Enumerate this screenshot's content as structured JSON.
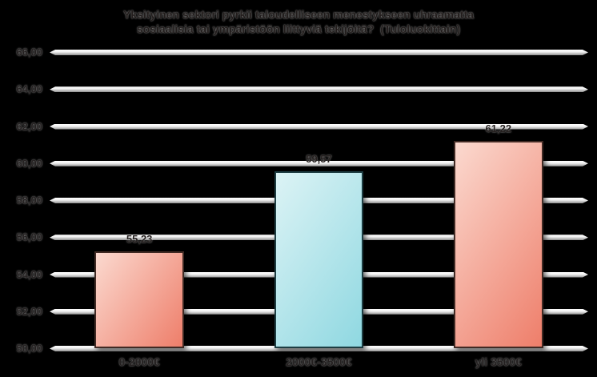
{
  "chart_data": {
    "type": "bar",
    "title": "Yksityinen sektori pyrkii taloudelliseen menestykseen uhraamatta\nsosiaalisia tai ympäristöön liittyviä tekijöitä?  (Tuloluokittain)",
    "xlabel": "",
    "ylabel": "",
    "ylim": [
      50,
      66
    ],
    "ytick_step": 2,
    "ytick_labels": [
      "66,00",
      "64,00",
      "62,00",
      "60,00",
      "58,00",
      "56,00",
      "54,00",
      "52,00",
      "50,00"
    ],
    "grid": true,
    "legend": false,
    "categories": [
      "0-2000€",
      "2000€-3500€",
      "yli 3500€"
    ],
    "values": [
      55.23,
      59.57,
      61.22
    ],
    "bars": [
      {
        "category": "0-2000€",
        "value": 55.23,
        "value_label": "55,23",
        "palette": "red"
      },
      {
        "category": "2000€-3500€",
        "value": 59.57,
        "value_label": "59,57",
        "palette": "cyan"
      },
      {
        "category": "yli 3500€",
        "value": 61.22,
        "value_label": "61,22",
        "palette": "red"
      }
    ]
  },
  "colors": {
    "background": "#000000",
    "gridline_top": "#ffffff",
    "gridline_bottom": "#8f8f8f",
    "text": "#242020",
    "palettes": {
      "red": {
        "light": "#fbd9cf",
        "dark": "#ee7e6a",
        "border": "#402a24"
      },
      "cyan": {
        "light": "#dcf3f5",
        "dark": "#8fd8e1",
        "border": "#1d3d42"
      }
    }
  }
}
